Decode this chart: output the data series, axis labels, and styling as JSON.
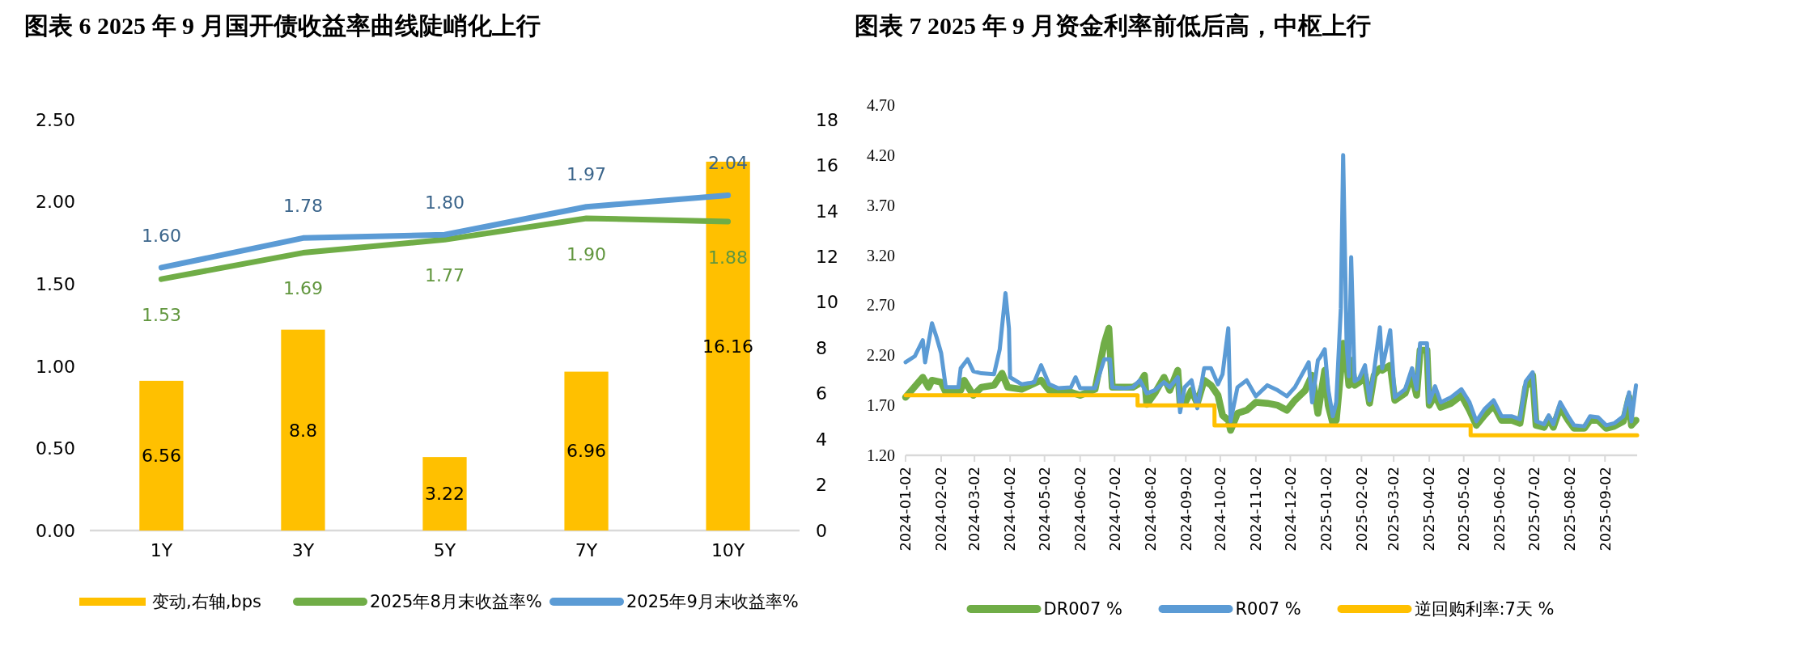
{
  "chart_data": [
    {
      "type": "bar",
      "title": "图表 6 2025 年 9 月国开债收益率曲线陡峭化上行",
      "categories": [
        "1Y",
        "3Y",
        "5Y",
        "7Y",
        "10Y"
      ],
      "series": [
        {
          "name": "变动,右轴,bps",
          "axis": "y2",
          "color": "#ffc000",
          "values": [
            6.56,
            8.8,
            3.22,
            6.96,
            16.16
          ],
          "value_labels": [
            "6.56",
            "8.8",
            "3.22",
            "6.96",
            "16.16"
          ]
        },
        {
          "name": "2025年8月末收益率%",
          "type": "line",
          "color": "#70ad47",
          "values": [
            1.53,
            1.69,
            1.77,
            1.9,
            1.88
          ],
          "value_labels": [
            "1.53",
            "1.69",
            "1.77",
            "1.90",
            "1.88"
          ]
        },
        {
          "name": "2025年9月末收益率%",
          "type": "line",
          "color": "#5b9bd5",
          "values": [
            1.6,
            1.78,
            1.8,
            1.97,
            2.04
          ],
          "value_labels": [
            "1.60",
            "1.78",
            "1.80",
            "1.97",
            "2.04"
          ]
        }
      ],
      "ylim": [
        0,
        2.5
      ],
      "yticks": [
        {
          "value": 0,
          "label": "0.00"
        },
        {
          "value": 0.5,
          "label": "0.50"
        },
        {
          "value": 1,
          "label": "1.00"
        },
        {
          "value": 1.5,
          "label": "1.50"
        },
        {
          "value": 2,
          "label": "2.00"
        },
        {
          "value": 2.5,
          "label": "2.50"
        }
      ],
      "y2lim": [
        0,
        18
      ],
      "y2ticks": [
        0,
        2,
        4,
        6,
        8,
        10,
        12,
        14,
        16,
        18
      ],
      "legend": "bottom"
    },
    {
      "type": "line",
      "title": "图表 7   2025 年 9 月资金利率前低后高，中枢上行",
      "series": [
        {
          "name": "DR007 %",
          "color": "#70ad47",
          "x": [
            "2024-01-02",
            "2024-01-17",
            "2024-01-22",
            "2024-01-25",
            "2024-02-02",
            "2024-02-06",
            "2024-02-13",
            "2024-02-19",
            "2024-02-22",
            "2024-03-01",
            "2024-03-08",
            "2024-03-19",
            "2024-03-26",
            "2024-03-31",
            "2024-04-12",
            "2024-04-29",
            "2024-05-06",
            "2024-05-25",
            "2024-06-02",
            "2024-06-15",
            "2024-06-23",
            "2024-06-27",
            "2024-06-30",
            "2024-07-10",
            "2024-07-18",
            "2024-07-24",
            "2024-07-28",
            "2024-07-30",
            "2024-08-06",
            "2024-08-14",
            "2024-08-19",
            "2024-08-26",
            "2024-08-28",
            "2024-09-01",
            "2024-09-07",
            "2024-09-12",
            "2024-09-18",
            "2024-09-24",
            "2024-09-30",
            "2024-10-04",
            "2024-10-09",
            "2024-10-11",
            "2024-10-17",
            "2024-10-25",
            "2024-11-02",
            "2024-11-12",
            "2024-11-21",
            "2024-11-29",
            "2024-12-06",
            "2024-12-15",
            "2024-12-21",
            "2024-12-26",
            "2025-01-01",
            "2025-01-04",
            "2025-01-08",
            "2025-01-11",
            "2025-01-15",
            "2025-01-17",
            "2025-01-20",
            "2025-01-22",
            "2025-01-24",
            "2025-01-27",
            "2025-01-31",
            "2025-02-05",
            "2025-02-09",
            "2025-02-13",
            "2025-02-18",
            "2025-02-20",
            "2025-02-27",
            "2025-03-03",
            "2025-03-12",
            "2025-03-18",
            "2025-03-22",
            "2025-03-25",
            "2025-03-31",
            "2025-04-02",
            "2025-04-07",
            "2025-04-12",
            "2025-04-21",
            "2025-04-30",
            "2025-05-07",
            "2025-05-13",
            "2025-05-20",
            "2025-05-28",
            "2025-06-04",
            "2025-06-13",
            "2025-06-20",
            "2025-06-25",
            "2025-07-01",
            "2025-07-04",
            "2025-07-11",
            "2025-07-15",
            "2025-07-19",
            "2025-07-25",
            "2025-08-01",
            "2025-08-06",
            "2025-08-15",
            "2025-08-20",
            "2025-08-27",
            "2025-09-03",
            "2025-09-10",
            "2025-09-18",
            "2025-09-23",
            "2025-09-25",
            "2025-09-29"
          ],
          "values": [
            1.78,
            1.98,
            1.88,
            1.95,
            1.93,
            1.83,
            1.83,
            1.85,
            1.95,
            1.8,
            1.88,
            1.9,
            2.02,
            1.88,
            1.86,
            1.95,
            1.85,
            1.83,
            1.8,
            1.86,
            2.32,
            2.47,
            1.88,
            1.88,
            1.88,
            1.92,
            2.0,
            1.71,
            1.82,
            1.98,
            1.85,
            2.05,
            1.72,
            1.72,
            1.85,
            1.72,
            1.95,
            1.9,
            1.8,
            1.6,
            1.55,
            1.45,
            1.62,
            1.65,
            1.73,
            1.72,
            1.7,
            1.65,
            1.75,
            1.85,
            2.0,
            1.62,
            2.05,
            1.7,
            1.52,
            1.55,
            2.05,
            2.32,
            2.15,
            1.9,
            2.15,
            1.9,
            1.93,
            2.0,
            1.72,
            2.0,
            2.07,
            2.05,
            2.1,
            1.75,
            1.82,
            2.0,
            1.8,
            2.25,
            2.25,
            1.7,
            1.8,
            1.68,
            1.72,
            1.8,
            1.65,
            1.5,
            1.6,
            1.7,
            1.55,
            1.55,
            1.52,
            1.88,
            2.0,
            1.5,
            1.48,
            1.57,
            1.48,
            1.68,
            1.55,
            1.47,
            1.47,
            1.55,
            1.55,
            1.47,
            1.49,
            1.54,
            1.78,
            1.5,
            1.55
          ]
        },
        {
          "name": "R007 %",
          "color": "#5b9bd5",
          "x": [
            "2024-01-02",
            "2024-01-10",
            "2024-01-17",
            "2024-01-19",
            "2024-01-25",
            "2024-01-29",
            "2024-02-02",
            "2024-02-06",
            "2024-02-13",
            "2024-02-17",
            "2024-02-19",
            "2024-02-25",
            "2024-03-01",
            "2024-03-08",
            "2024-03-19",
            "2024-03-24",
            "2024-03-29",
            "2024-04-01",
            "2024-04-02",
            "2024-04-12",
            "2024-04-23",
            "2024-04-29",
            "2024-05-06",
            "2024-05-14",
            "2024-05-25",
            "2024-05-29",
            "2024-06-02",
            "2024-06-15",
            "2024-06-23",
            "2024-06-28",
            "2024-06-30",
            "2024-07-10",
            "2024-07-18",
            "2024-07-24",
            "2024-07-30",
            "2024-08-06",
            "2024-08-14",
            "2024-08-19",
            "2024-08-26",
            "2024-08-28",
            "2024-09-01",
            "2024-09-07",
            "2024-09-12",
            "2024-09-18",
            "2024-09-24",
            "2024-09-30",
            "2024-10-04",
            "2024-10-09",
            "2024-10-11",
            "2024-10-17",
            "2024-10-25",
            "2024-11-02",
            "2024-11-12",
            "2024-11-21",
            "2024-11-29",
            "2024-12-06",
            "2024-12-18",
            "2024-12-21",
            "2024-12-26",
            "2024-12-28",
            "2025-01-01",
            "2025-01-04",
            "2025-01-08",
            "2025-01-11",
            "2025-01-15",
            "2025-01-17",
            "2025-01-20",
            "2025-01-22",
            "2025-01-24",
            "2025-01-27",
            "2025-01-31",
            "2025-02-05",
            "2025-02-09",
            "2025-02-13",
            "2025-02-18",
            "2025-02-20",
            "2025-02-27",
            "2025-03-03",
            "2025-03-12",
            "2025-03-18",
            "2025-03-22",
            "2025-03-25",
            "2025-03-31",
            "2025-04-02",
            "2025-04-07",
            "2025-04-12",
            "2025-04-21",
            "2025-04-30",
            "2025-05-07",
            "2025-05-13",
            "2025-05-20",
            "2025-05-28",
            "2025-06-04",
            "2025-06-13",
            "2025-06-20",
            "2025-06-25",
            "2025-07-01",
            "2025-07-04",
            "2025-07-11",
            "2025-07-15",
            "2025-07-19",
            "2025-07-25",
            "2025-08-01",
            "2025-08-06",
            "2025-08-15",
            "2025-08-20",
            "2025-08-27",
            "2025-09-03",
            "2025-09-10",
            "2025-09-18",
            "2025-09-23",
            "2025-09-25",
            "2025-09-29"
          ],
          "values": [
            2.13,
            2.19,
            2.35,
            2.13,
            2.52,
            2.38,
            2.22,
            1.88,
            1.88,
            1.88,
            2.07,
            2.16,
            2.04,
            2.02,
            2.01,
            2.26,
            2.82,
            2.47,
            1.98,
            1.91,
            1.93,
            2.1,
            1.91,
            1.87,
            1.88,
            1.98,
            1.87,
            1.87,
            2.16,
            2.16,
            1.88,
            1.87,
            1.88,
            1.95,
            1.82,
            1.85,
            1.93,
            1.88,
            1.98,
            1.63,
            1.88,
            1.95,
            1.67,
            2.07,
            2.07,
            1.91,
            2.01,
            2.47,
            1.54,
            1.88,
            1.95,
            1.79,
            1.9,
            1.85,
            1.79,
            1.88,
            2.13,
            1.73,
            2.15,
            2.18,
            2.26,
            1.86,
            1.59,
            1.73,
            2.67,
            4.2,
            2.32,
            1.99,
            3.18,
            1.94,
            1.97,
            2.1,
            1.75,
            2.05,
            2.48,
            2.07,
            2.45,
            1.78,
            1.86,
            2.07,
            1.86,
            2.32,
            2.32,
            1.73,
            1.89,
            1.73,
            1.78,
            1.86,
            1.73,
            1.54,
            1.66,
            1.75,
            1.59,
            1.59,
            1.56,
            1.94,
            2.03,
            1.54,
            1.51,
            1.6,
            1.51,
            1.73,
            1.59,
            1.5,
            1.49,
            1.59,
            1.58,
            1.5,
            1.52,
            1.59,
            1.83,
            1.54,
            1.9
          ]
        },
        {
          "name": "逆回购利率:7天 %",
          "type": "step",
          "color": "#ffc000",
          "x": [
            "2024-01-02",
            "2024-07-22",
            "2024-09-27",
            "2025-05-08",
            "2025-09-30"
          ],
          "values": [
            1.8,
            1.7,
            1.5,
            1.4,
            1.4
          ]
        }
      ],
      "xlim": [
        "2024-01-02",
        "2025-09-30"
      ],
      "xticks": [
        "2024-01-02",
        "2024-02-02",
        "2024-03-02",
        "2024-04-02",
        "2024-05-02",
        "2024-06-02",
        "2024-07-02",
        "2024-08-02",
        "2024-09-02",
        "2024-10-02",
        "2024-11-02",
        "2024-12-02",
        "2025-01-02",
        "2025-02-02",
        "2025-03-02",
        "2025-04-02",
        "2025-05-02",
        "2025-06-02",
        "2025-07-02",
        "2025-08-02",
        "2025-09-02"
      ],
      "ylim": [
        1.2,
        4.7
      ],
      "yticks": [
        {
          "value": 1.2,
          "label": "1.20"
        },
        {
          "value": 1.7,
          "label": "1.70"
        },
        {
          "value": 2.2,
          "label": "2.20"
        },
        {
          "value": 2.7,
          "label": "2.70"
        },
        {
          "value": 3.2,
          "label": "3.20"
        },
        {
          "value": 3.7,
          "label": "3.70"
        },
        {
          "value": 4.2,
          "label": "4.20"
        },
        {
          "value": 4.7,
          "label": "4.70"
        }
      ],
      "legend": "bottom"
    }
  ]
}
